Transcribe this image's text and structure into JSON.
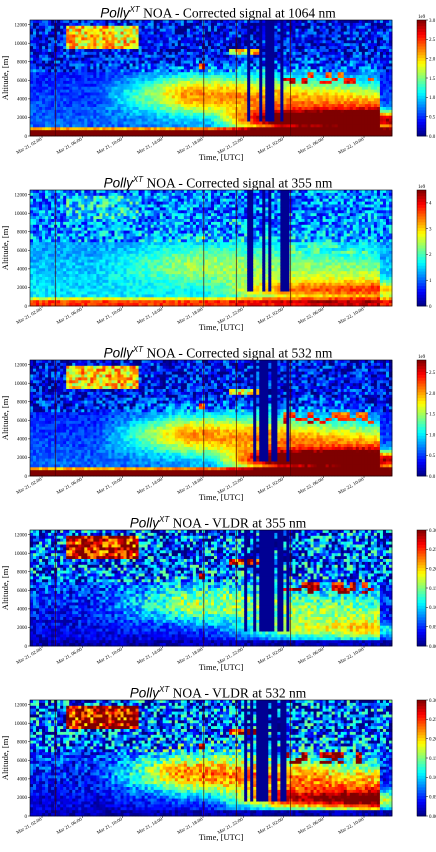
{
  "colors": {
    "colormap": [
      "#00007f",
      "#0000ff",
      "#007fff",
      "#00ffff",
      "#7fff7f",
      "#ffff00",
      "#ff7f00",
      "#ff0000",
      "#7f0000"
    ],
    "background": "#000090"
  },
  "chart_data": [
    {
      "type": "heatmap",
      "title_name": "Polly",
      "title_sup": "XT",
      "title_rest": " NOA - Corrected signal at 1064 nm",
      "xlabel": "Time, [UTC]",
      "ylabel": "Altitude, [m]",
      "xticks": [
        "Mar 21, 02:00",
        "Mar 21, 06:00",
        "Mar 21, 10:00",
        "Mar 21, 14:00",
        "Mar 21, 18:00",
        "Mar 21, 22:00",
        "Mar 22, 02:00",
        "Mar 22, 06:00",
        "Mar 22, 10:00"
      ],
      "yticks": [
        "0",
        "2000",
        "4000",
        "6000",
        "8000",
        "10000",
        "12000"
      ],
      "ylim": [
        0,
        12500
      ],
      "colorbar": {
        "ticks": [
          "0.0",
          "0.5",
          "1.0",
          "1.5",
          "2.0",
          "2.5",
          "3.0"
        ],
        "max": 3.0,
        "exponent": "1e9"
      }
    },
    {
      "type": "heatmap",
      "title_name": "Polly",
      "title_sup": "XT",
      "title_rest": " NOA - Corrected signal at 355 nm",
      "xlabel": "Time, [UTC]",
      "ylabel": "Altitude, [m]",
      "xticks": [
        "Mar 21, 02:00",
        "Mar 21, 06:00",
        "Mar 21, 10:00",
        "Mar 21, 14:00",
        "Mar 21, 18:00",
        "Mar 21, 22:00",
        "Mar 22, 02:00",
        "Mar 22, 06:00",
        "Mar 22, 10:00"
      ],
      "yticks": [
        "0",
        "2000",
        "4000",
        "6000",
        "8000",
        "10000",
        "12000"
      ],
      "ylim": [
        0,
        12500
      ],
      "colorbar": {
        "ticks": [
          "0",
          "1",
          "2",
          "3",
          "4"
        ],
        "max": 4.5,
        "exponent": "1e9"
      }
    },
    {
      "type": "heatmap",
      "title_name": "Polly",
      "title_sup": "XT",
      "title_rest": " NOA - Corrected signal at 532 nm",
      "xlabel": "Time, [UTC]",
      "ylabel": "Altitude, [m]",
      "xticks": [
        "Mar 21, 02:00",
        "Mar 21, 06:00",
        "Mar 21, 10:00",
        "Mar 21, 14:00",
        "Mar 21, 18:00",
        "Mar 21, 22:00",
        "Mar 22, 02:00",
        "Mar 22, 06:00",
        "Mar 22, 10:00"
      ],
      "yticks": [
        "0",
        "2000",
        "4000",
        "6000",
        "8000",
        "10000",
        "12000"
      ],
      "ylim": [
        0,
        12500
      ],
      "colorbar": {
        "ticks": [
          "0.0",
          "0.5",
          "1.0",
          "1.5",
          "2.0",
          "2.5"
        ],
        "max": 2.8,
        "exponent": "1e9"
      }
    },
    {
      "type": "heatmap",
      "title_name": "Polly",
      "title_sup": "XT",
      "title_rest": " NOA - VLDR at 355 nm",
      "xlabel": "Time, [UTC]",
      "ylabel": "Altitude, [m]",
      "xticks": [
        "Mar 21, 02:00",
        "Mar 21, 06:00",
        "Mar 21, 10:00",
        "Mar 21, 14:00",
        "Mar 21, 18:00",
        "Mar 21, 22:00",
        "Mar 22, 02:00",
        "Mar 22, 06:00",
        "Mar 22, 10:00"
      ],
      "yticks": [
        "0",
        "2000",
        "4000",
        "6000",
        "8000",
        "10000",
        "12000"
      ],
      "ylim": [
        0,
        12500
      ],
      "colorbar": {
        "ticks": [
          "0.00",
          "0.05",
          "0.10",
          "0.15",
          "0.20",
          "0.25",
          "0.30"
        ],
        "max": 0.3,
        "exponent": ""
      }
    },
    {
      "type": "heatmap",
      "title_name": "Polly",
      "title_sup": "XT",
      "title_rest": " NOA - VLDR at 532 nm",
      "xlabel": "Time, [UTC]",
      "ylabel": "Altitude, [m]",
      "xticks": [
        "Mar 21, 02:00",
        "Mar 21, 06:00",
        "Mar 21, 10:00",
        "Mar 21, 14:00",
        "Mar 21, 18:00",
        "Mar 21, 22:00",
        "Mar 22, 02:00",
        "Mar 22, 06:00",
        "Mar 22, 10:00"
      ],
      "yticks": [
        "0",
        "2000",
        "4000",
        "6000",
        "8000",
        "10000",
        "12000"
      ],
      "ylim": [
        0,
        12500
      ],
      "colorbar": {
        "ticks": [
          "0.00",
          "0.05",
          "0.10",
          "0.15",
          "0.20",
          "0.25",
          "0.30"
        ],
        "max": 0.3,
        "exponent": ""
      }
    }
  ]
}
